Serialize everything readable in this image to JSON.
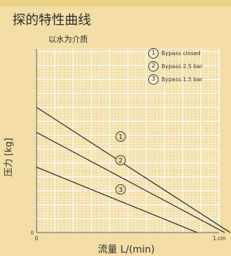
{
  "header": {
    "text": ""
  },
  "chart_data": {
    "type": "line",
    "title": "探的特性曲线",
    "subtitle": "以水为介质",
    "ylabel": "压力 [kg]",
    "xlabel": "流量 L/(min)",
    "x_ticks": [
      "0",
      "",
      "",
      "",
      "",
      "1.cm"
    ],
    "y_ticks": [
      "0",
      "",
      "",
      "",
      "",
      "",
      "",
      "",
      "",
      "",
      "",
      "",
      "",
      ""
    ],
    "xlim": [
      0,
      5
    ],
    "ylim": [
      0,
      6.6
    ],
    "series": [
      {
        "name": "Bypass closed",
        "marker": "1",
        "label_at": [
          2.3,
          3.45
        ],
        "points": [
          [
            0,
            4.5
          ],
          [
            5.3,
            0
          ]
        ]
      },
      {
        "name": "Bypass 2.5 bar",
        "marker": "2",
        "label_at": [
          2.3,
          2.6
        ],
        "points": [
          [
            0,
            3.6
          ],
          [
            5.15,
            0
          ]
        ]
      },
      {
        "name": "Bypass 1.5 bar",
        "marker": "3",
        "label_at": [
          2.3,
          1.55
        ],
        "points": [
          [
            0,
            2.35
          ],
          [
            4.4,
            0
          ]
        ]
      }
    ],
    "grid": true,
    "legend_position": "top-right"
  },
  "colors": {
    "background": "#f3dfa6",
    "grid": "#ffffff",
    "lines": "#3a3a3a",
    "text": "#2e2e2e"
  }
}
